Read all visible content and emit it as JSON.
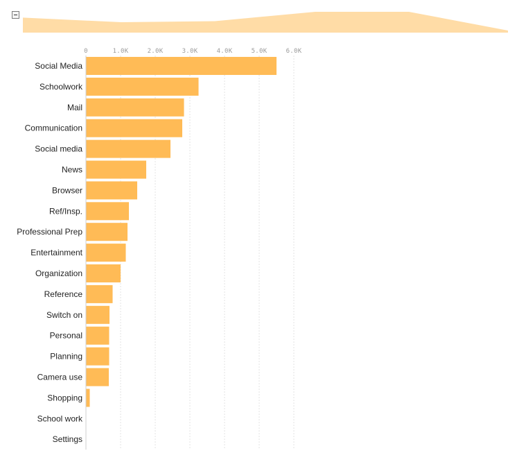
{
  "colors": {
    "bar": "#ffbb56",
    "overview_area": "#ffdca6",
    "grid": "#e3e3e3",
    "tick_text": "#9a9a9a",
    "label_text": "#222222"
  },
  "overview": {
    "collapse_icon": "minus-icon",
    "series_shape": [
      0.72,
      0.5,
      0.55,
      1.0,
      1.0,
      0.1
    ]
  },
  "chart_data": {
    "type": "bar",
    "orientation": "horizontal",
    "categories": [
      "Social Media",
      "Schoolwork",
      "Mail",
      "Communication",
      "Social media",
      "News",
      "Browser",
      "Ref/Insp.",
      "Professional Prep",
      "Entertainment",
      "Organization",
      "Reference",
      "Switch on",
      "Personal",
      "Planning",
      "Camera use",
      "Shopping",
      "School work",
      "Settings"
    ],
    "values": [
      5500,
      3250,
      2830,
      2780,
      2440,
      1740,
      1480,
      1240,
      1200,
      1150,
      1000,
      770,
      680,
      670,
      670,
      660,
      110,
      10,
      5
    ],
    "tick_values": [
      0,
      1000,
      2000,
      3000,
      4000,
      5000,
      6000
    ],
    "tick_labels": [
      "0",
      "1.0K",
      "2.0K",
      "3.0K",
      "4.0K",
      "5.0K",
      "6.0K"
    ],
    "xlim": [
      0,
      6000
    ],
    "grid": true,
    "title": "",
    "xlabel": "",
    "ylabel": ""
  }
}
